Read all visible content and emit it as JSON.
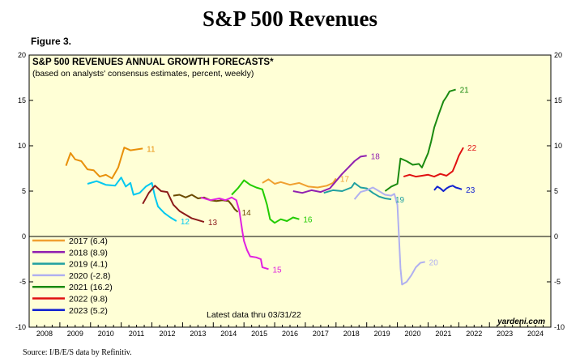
{
  "header": {
    "title": "S&P 500 Revenues",
    "figure": "Figure 3."
  },
  "source": "Source: I/B/E/S data by Refinitiv.",
  "chart_data": {
    "type": "line",
    "title": "S&P 500 REVENUES ANNUAL GROWTH FORECASTS*",
    "subtitle": "(based on analysts' consensus estimates, percent, weekly)",
    "xlabel": "",
    "ylabel": "",
    "xlim": [
      2008,
      2025
    ],
    "ylim": [
      -10,
      20
    ],
    "yticks": [
      -10,
      -5,
      0,
      5,
      10,
      15,
      20
    ],
    "ytick_labels": [
      "-10",
      "-5",
      "0",
      "5",
      "10",
      "15",
      "20"
    ],
    "xtick_labels": [
      "2008",
      "2009",
      "2010",
      "2011",
      "2012",
      "2013",
      "2014",
      "2015",
      "2016",
      "2017",
      "2018",
      "2019",
      "2020",
      "2021",
      "2022",
      "2023",
      "2024"
    ],
    "grid": false,
    "legend_position": "bottom-left",
    "annotation": "Latest data thru 03/31/22",
    "watermark": "yardeni.com",
    "background": "#FFFFD6",
    "series": [
      {
        "name": "11",
        "legend": "",
        "color": "#E8900A",
        "end_label": "11",
        "points": [
          [
            2009.2,
            7.8
          ],
          [
            2009.35,
            9.2
          ],
          [
            2009.5,
            8.5
          ],
          [
            2009.7,
            8.3
          ],
          [
            2009.9,
            7.4
          ],
          [
            2010.1,
            7.3
          ],
          [
            2010.3,
            6.6
          ],
          [
            2010.5,
            6.8
          ],
          [
            2010.7,
            6.4
          ],
          [
            2010.9,
            7.6
          ],
          [
            2011.0,
            8.7
          ],
          [
            2011.1,
            9.8
          ],
          [
            2011.3,
            9.5
          ],
          [
            2011.5,
            9.6
          ],
          [
            2011.7,
            9.7
          ]
        ]
      },
      {
        "name": "12",
        "legend": "",
        "color": "#00C8F0",
        "end_label": "12",
        "points": [
          [
            2009.9,
            5.8
          ],
          [
            2010.2,
            6.1
          ],
          [
            2010.5,
            5.7
          ],
          [
            2010.8,
            5.6
          ],
          [
            2011.0,
            6.5
          ],
          [
            2011.15,
            5.5
          ],
          [
            2011.3,
            5.9
          ],
          [
            2011.4,
            4.6
          ],
          [
            2011.6,
            4.8
          ],
          [
            2011.8,
            5.5
          ],
          [
            2012.0,
            5.9
          ],
          [
            2012.1,
            4.4
          ],
          [
            2012.2,
            3.3
          ],
          [
            2012.4,
            2.6
          ],
          [
            2012.6,
            2.1
          ],
          [
            2012.8,
            1.7
          ]
        ]
      },
      {
        "name": "13",
        "legend": "",
        "color": "#8B1A1A",
        "end_label": "13",
        "points": [
          [
            2011.7,
            3.6
          ],
          [
            2011.9,
            4.8
          ],
          [
            2012.1,
            5.6
          ],
          [
            2012.3,
            5.0
          ],
          [
            2012.5,
            4.9
          ],
          [
            2012.7,
            3.5
          ],
          [
            2012.9,
            2.8
          ],
          [
            2013.1,
            2.4
          ],
          [
            2013.3,
            2.0
          ],
          [
            2013.5,
            1.8
          ],
          [
            2013.7,
            1.6
          ]
        ]
      },
      {
        "name": "14",
        "legend": "",
        "color": "#6B4A00",
        "end_label": "14",
        "points": [
          [
            2012.7,
            4.5
          ],
          [
            2012.9,
            4.6
          ],
          [
            2013.1,
            4.3
          ],
          [
            2013.3,
            4.6
          ],
          [
            2013.5,
            4.2
          ],
          [
            2013.7,
            4.3
          ],
          [
            2013.9,
            4.0
          ],
          [
            2014.1,
            3.9
          ],
          [
            2014.3,
            4.0
          ],
          [
            2014.5,
            3.9
          ],
          [
            2014.6,
            3.5
          ],
          [
            2014.7,
            3.0
          ],
          [
            2014.8,
            2.7
          ]
        ]
      },
      {
        "name": "15",
        "legend": "",
        "color": "#E020E0",
        "end_label": "15",
        "points": [
          [
            2013.6,
            4.3
          ],
          [
            2013.9,
            4.0
          ],
          [
            2014.2,
            4.2
          ],
          [
            2014.4,
            4.0
          ],
          [
            2014.6,
            4.3
          ],
          [
            2014.75,
            4.0
          ],
          [
            2014.85,
            2.8
          ],
          [
            2014.95,
            0.5
          ],
          [
            2015.0,
            -0.5
          ],
          [
            2015.1,
            -1.5
          ],
          [
            2015.2,
            -2.2
          ],
          [
            2015.4,
            -2.3
          ],
          [
            2015.55,
            -2.5
          ],
          [
            2015.6,
            -3.4
          ],
          [
            2015.8,
            -3.6
          ]
        ]
      },
      {
        "name": "16",
        "legend": "",
        "color": "#22CC00",
        "end_label": "16",
        "points": [
          [
            2014.6,
            4.6
          ],
          [
            2014.8,
            5.3
          ],
          [
            2015.0,
            6.2
          ],
          [
            2015.2,
            5.7
          ],
          [
            2015.4,
            5.4
          ],
          [
            2015.6,
            5.2
          ],
          [
            2015.75,
            3.5
          ],
          [
            2015.85,
            1.9
          ],
          [
            2016.0,
            1.5
          ],
          [
            2016.2,
            1.9
          ],
          [
            2016.4,
            1.7
          ],
          [
            2016.6,
            2.1
          ],
          [
            2016.8,
            1.9
          ]
        ]
      },
      {
        "name": "17",
        "legend": "2017 (6.4)",
        "color": "#F0A030",
        "end_label": "17",
        "points": [
          [
            2015.6,
            5.9
          ],
          [
            2015.8,
            6.3
          ],
          [
            2016.0,
            5.8
          ],
          [
            2016.2,
            6.0
          ],
          [
            2016.5,
            5.7
          ],
          [
            2016.8,
            5.9
          ],
          [
            2017.1,
            5.5
          ],
          [
            2017.4,
            5.4
          ],
          [
            2017.7,
            5.6
          ],
          [
            2017.9,
            5.9
          ],
          [
            2018.0,
            6.4
          ]
        ]
      },
      {
        "name": "18",
        "legend": "2018 (8.9)",
        "color": "#9020B0",
        "end_label": "18",
        "points": [
          [
            2016.6,
            5.0
          ],
          [
            2016.9,
            4.8
          ],
          [
            2017.2,
            5.1
          ],
          [
            2017.5,
            4.9
          ],
          [
            2017.8,
            5.3
          ],
          [
            2018.0,
            6.1
          ],
          [
            2018.2,
            6.9
          ],
          [
            2018.4,
            7.6
          ],
          [
            2018.6,
            8.3
          ],
          [
            2018.8,
            8.8
          ],
          [
            2019.0,
            8.9
          ]
        ]
      },
      {
        "name": "19",
        "legend": "2019 (4.1)",
        "color": "#20A0A0",
        "end_label": "19",
        "points": [
          [
            2017.6,
            4.8
          ],
          [
            2017.9,
            5.1
          ],
          [
            2018.2,
            5.0
          ],
          [
            2018.5,
            5.4
          ],
          [
            2018.6,
            5.9
          ],
          [
            2018.8,
            5.4
          ],
          [
            2019.0,
            5.3
          ],
          [
            2019.2,
            4.8
          ],
          [
            2019.4,
            4.4
          ],
          [
            2019.6,
            4.2
          ],
          [
            2019.8,
            4.1
          ]
        ]
      },
      {
        "name": "20",
        "legend": "2020 (-2.8)",
        "color": "#B0B0F0",
        "end_label": "20",
        "points": [
          [
            2018.6,
            4.1
          ],
          [
            2018.8,
            4.9
          ],
          [
            2019.0,
            5.1
          ],
          [
            2019.2,
            5.4
          ],
          [
            2019.4,
            5.0
          ],
          [
            2019.6,
            4.6
          ],
          [
            2019.8,
            4.5
          ],
          [
            2019.9,
            4.7
          ],
          [
            2020.0,
            3.5
          ],
          [
            2020.05,
            0.0
          ],
          [
            2020.1,
            -3.5
          ],
          [
            2020.15,
            -5.3
          ],
          [
            2020.3,
            -5.0
          ],
          [
            2020.45,
            -4.3
          ],
          [
            2020.6,
            -3.4
          ],
          [
            2020.75,
            -2.9
          ],
          [
            2020.9,
            -2.8
          ]
        ]
      },
      {
        "name": "21",
        "legend": "2021 (16.2)",
        "color": "#1A8A10",
        "end_label": "21",
        "points": [
          [
            2019.6,
            5.0
          ],
          [
            2019.8,
            5.5
          ],
          [
            2020.0,
            5.8
          ],
          [
            2020.1,
            8.6
          ],
          [
            2020.3,
            8.3
          ],
          [
            2020.5,
            7.9
          ],
          [
            2020.7,
            8.0
          ],
          [
            2020.8,
            7.6
          ],
          [
            2020.9,
            8.4
          ],
          [
            2021.0,
            9.2
          ],
          [
            2021.1,
            10.5
          ],
          [
            2021.2,
            12.0
          ],
          [
            2021.35,
            13.5
          ],
          [
            2021.5,
            14.9
          ],
          [
            2021.6,
            15.4
          ],
          [
            2021.7,
            16.0
          ],
          [
            2021.8,
            16.1
          ],
          [
            2021.9,
            16.2
          ]
        ]
      },
      {
        "name": "22",
        "legend": "2022 (9.8)",
        "color": "#E01010",
        "end_label": "22",
        "points": [
          [
            2020.2,
            6.6
          ],
          [
            2020.4,
            6.8
          ],
          [
            2020.6,
            6.6
          ],
          [
            2020.8,
            6.7
          ],
          [
            2021.0,
            6.8
          ],
          [
            2021.2,
            6.6
          ],
          [
            2021.4,
            6.9
          ],
          [
            2021.6,
            6.7
          ],
          [
            2021.8,
            7.2
          ],
          [
            2021.9,
            8.0
          ],
          [
            2022.0,
            8.9
          ],
          [
            2022.15,
            9.8
          ]
        ]
      },
      {
        "name": "23",
        "legend": "2023 (5.2)",
        "color": "#1020D0",
        "end_label": "23",
        "points": [
          [
            2021.2,
            5.1
          ],
          [
            2021.3,
            5.5
          ],
          [
            2021.4,
            5.3
          ],
          [
            2021.5,
            5.0
          ],
          [
            2021.6,
            5.3
          ],
          [
            2021.7,
            5.5
          ],
          [
            2021.8,
            5.6
          ],
          [
            2021.9,
            5.4
          ],
          [
            2022.0,
            5.3
          ],
          [
            2022.1,
            5.2
          ]
        ]
      }
    ]
  }
}
